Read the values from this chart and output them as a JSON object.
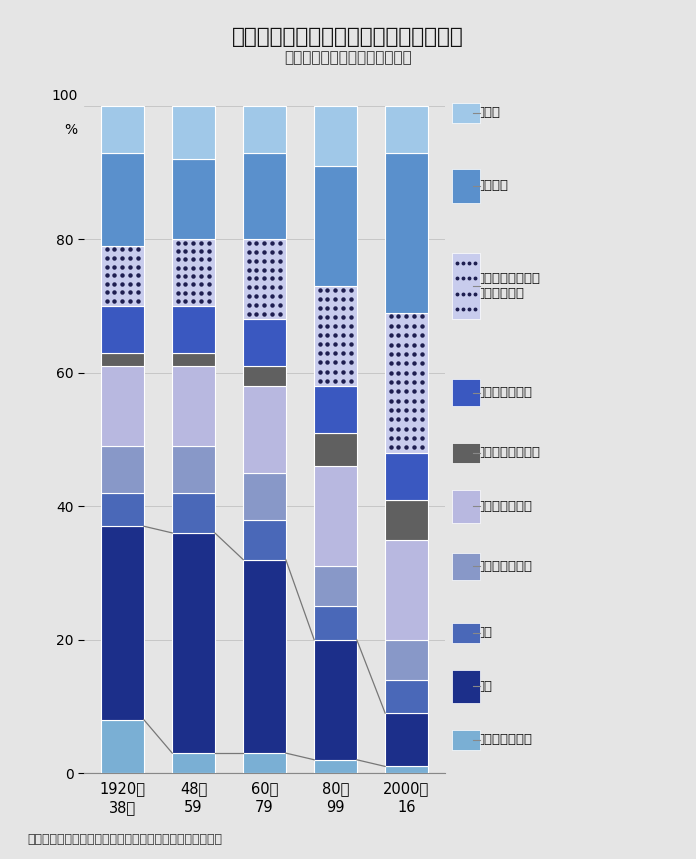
{
  "title": "英国では製造業の存在感の低下が顕著だ",
  "subtitle": "（雇用に占める各業種の割合）",
  "footnote": "（注）英イングランド銀行（中央銀行）のデータから作成",
  "categories": [
    "1920～\n38年",
    "48～\n59",
    "60～\n79",
    "80～\n99",
    "2000～\n16"
  ],
  "stack_keys": [
    "第１次産業関連",
    "製造",
    "建設",
    "輸送、情報通信",
    "小売り、卸売り",
    "保険、銀行、金融",
    "行政機関、防衛",
    "科学技術",
    "サービス",
    "その他"
  ],
  "data": {
    "第１次産業関連": [
      8,
      3,
      3,
      2,
      1
    ],
    "製造": [
      29,
      33,
      29,
      18,
      8
    ],
    "建設": [
      5,
      6,
      6,
      5,
      5
    ],
    "輸送、情報通信": [
      7,
      7,
      7,
      6,
      6
    ],
    "小売り、卸売り": [
      12,
      12,
      13,
      15,
      15
    ],
    "保険、銀行、金融": [
      2,
      2,
      3,
      5,
      6
    ],
    "行政機関、防衛": [
      7,
      7,
      7,
      7,
      7
    ],
    "科学技術": [
      9,
      10,
      12,
      15,
      21
    ],
    "サービス": [
      14,
      12,
      13,
      18,
      24
    ],
    "その他": [
      7,
      8,
      7,
      9,
      7
    ]
  },
  "color_map": {
    "第１次産業関連": "#7aafd4",
    "製造": "#1c2f8a",
    "建設": "#4a68b8",
    "輸送、情報通信": "#8898c8",
    "小売り、卸売り": "#b8b8e0",
    "保険、銀行、金融": "#606060",
    "行政機関、防衛": "#3a58c0",
    "科学技術": "#c8cced",
    "サービス": "#5a90cc",
    "その他": "#a0c8e8"
  },
  "legend_entries": [
    [
      "その他",
      "#a0c8e8",
      false,
      false
    ],
    [
      "サービス",
      "#5a90cc",
      false,
      false
    ],
    [
      "科学技術（教育、\n医療を含む）",
      "#c8cced",
      true,
      false
    ],
    [
      "行政機関、防衛",
      "#3a58c0",
      false,
      false
    ],
    [
      "保険、銀行、金融",
      "#606060",
      false,
      false
    ],
    [
      "小売り、卸売り",
      "#b8b8e0",
      false,
      false
    ],
    [
      "輸送、情報通信",
      "#8898c8",
      false,
      false
    ],
    [
      "建設",
      "#4a68b8",
      false,
      false
    ],
    [
      "製造",
      "#1c2f8a",
      false,
      true
    ],
    [
      "第１次産業関連",
      "#7aafd4",
      false,
      false
    ]
  ],
  "background_color": "#e5e5e5",
  "bar_width": 0.6,
  "dot_color": "#1e1e50"
}
